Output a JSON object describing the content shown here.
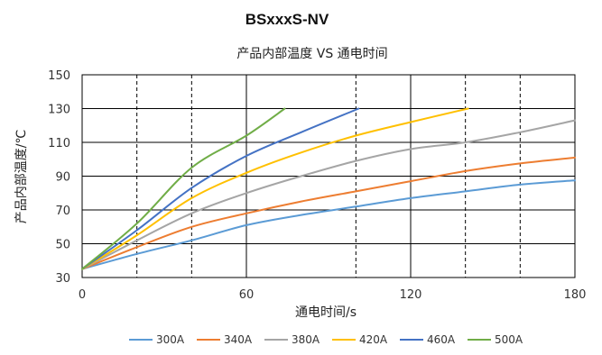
{
  "product_title": "BSxxxS-NV",
  "chart_data": {
    "type": "line",
    "title": "产品内部温度 VS 通电时间",
    "xlabel": "通电时间/s",
    "ylabel": "产品内部温度/℃",
    "xlim": [
      0,
      180
    ],
    "ylim": [
      30,
      150
    ],
    "x_ticks": [
      0,
      60,
      120,
      180
    ],
    "y_ticks": [
      30,
      50,
      70,
      90,
      110,
      130,
      150
    ],
    "x_minor_dashed": [
      20,
      40,
      100,
      140,
      160
    ],
    "grid": true,
    "legend_position": "bottom",
    "series": [
      {
        "name": "300A",
        "color": "#5b9bd5",
        "points": [
          [
            0,
            35
          ],
          [
            20,
            44
          ],
          [
            40,
            52
          ],
          [
            60,
            61
          ],
          [
            80,
            67
          ],
          [
            100,
            72
          ],
          [
            120,
            77
          ],
          [
            140,
            81
          ],
          [
            160,
            85
          ],
          [
            180,
            87.5
          ]
        ]
      },
      {
        "name": "340A",
        "color": "#ed7d31",
        "points": [
          [
            0,
            35
          ],
          [
            20,
            48
          ],
          [
            40,
            60
          ],
          [
            60,
            68
          ],
          [
            80,
            75
          ],
          [
            100,
            81
          ],
          [
            120,
            87
          ],
          [
            140,
            93
          ],
          [
            160,
            97.5
          ],
          [
            180,
            101
          ]
        ]
      },
      {
        "name": "380A",
        "color": "#a5a5a5",
        "points": [
          [
            0,
            35
          ],
          [
            20,
            52
          ],
          [
            40,
            68
          ],
          [
            60,
            80
          ],
          [
            80,
            90
          ],
          [
            100,
            99
          ],
          [
            120,
            106
          ],
          [
            140,
            110
          ],
          [
            160,
            116
          ],
          [
            180,
            123
          ]
        ]
      },
      {
        "name": "420A",
        "color": "#ffc000",
        "points": [
          [
            0,
            35
          ],
          [
            20,
            55
          ],
          [
            40,
            77
          ],
          [
            60,
            92
          ],
          [
            80,
            104
          ],
          [
            100,
            114
          ],
          [
            120,
            122
          ],
          [
            141,
            130
          ]
        ]
      },
      {
        "name": "460A",
        "color": "#4472c4",
        "points": [
          [
            0,
            35
          ],
          [
            20,
            58
          ],
          [
            40,
            83
          ],
          [
            60,
            102
          ],
          [
            80,
            116
          ],
          [
            101,
            130
          ]
        ]
      },
      {
        "name": "500A",
        "color": "#70ad47",
        "points": [
          [
            0,
            35
          ],
          [
            20,
            62
          ],
          [
            40,
            95
          ],
          [
            60,
            114
          ],
          [
            74,
            130
          ]
        ]
      }
    ]
  }
}
